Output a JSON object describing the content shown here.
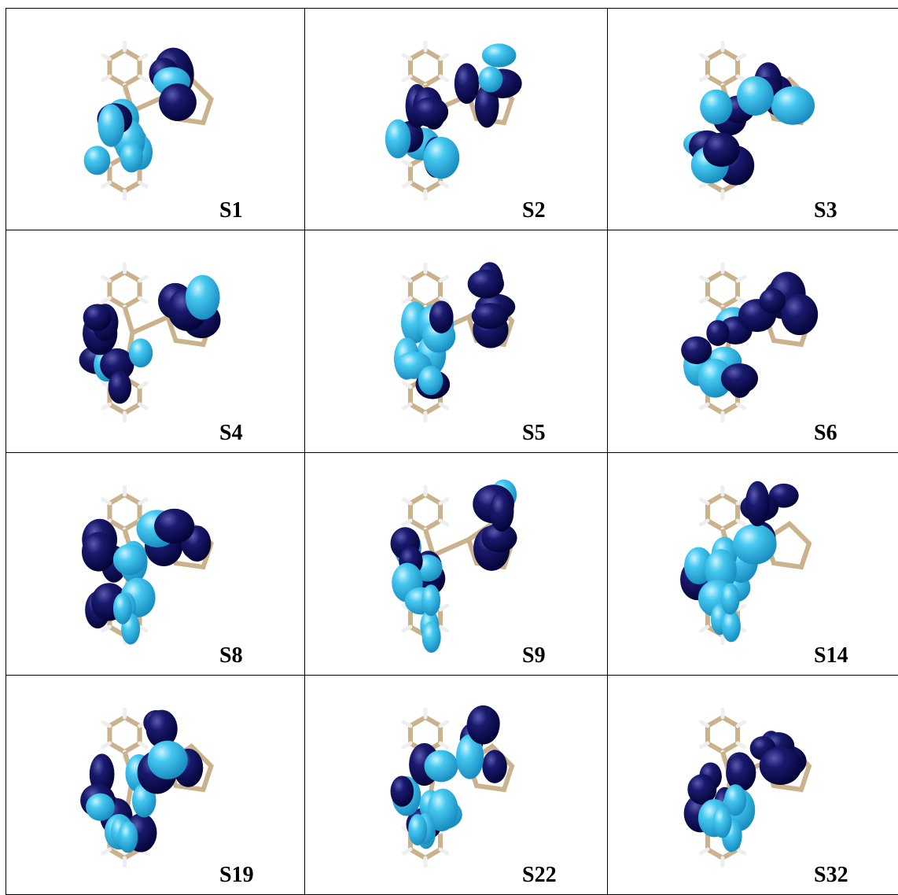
{
  "figure": {
    "panels": [
      {
        "label": "S1"
      },
      {
        "label": "S2"
      },
      {
        "label": "S3"
      },
      {
        "label": "S4"
      },
      {
        "label": "S5"
      },
      {
        "label": "S6"
      },
      {
        "label": "S8"
      },
      {
        "label": "S9"
      },
      {
        "label": "S14"
      },
      {
        "label": "S19"
      },
      {
        "label": "S22"
      },
      {
        "label": "S32"
      }
    ]
  }
}
